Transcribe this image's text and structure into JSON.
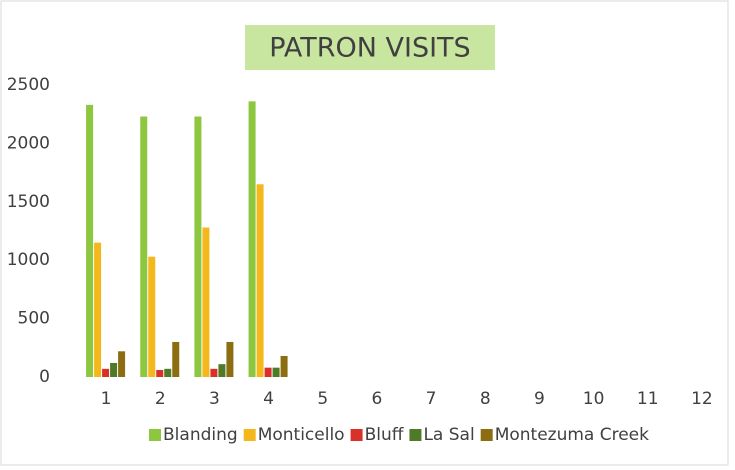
{
  "chart_data": {
    "type": "bar",
    "title": "PATRON VISITS",
    "categories": [
      "1",
      "2",
      "3",
      "4",
      "5",
      "6",
      "7",
      "8",
      "9",
      "10",
      "11",
      "12"
    ],
    "series": [
      {
        "name": "Blanding",
        "color": "#8dc63f",
        "values": [
          2330,
          2230,
          2230,
          2360,
          null,
          null,
          null,
          null,
          null,
          null,
          null,
          null
        ]
      },
      {
        "name": "Monticello",
        "color": "#f4b81c",
        "values": [
          1150,
          1030,
          1280,
          1650,
          null,
          null,
          null,
          null,
          null,
          null,
          null,
          null
        ]
      },
      {
        "name": "Bluff",
        "color": "#d9302a",
        "values": [
          70,
          60,
          70,
          80,
          null,
          null,
          null,
          null,
          null,
          null,
          null,
          null
        ]
      },
      {
        "name": "La Sal",
        "color": "#4f7a28",
        "values": [
          120,
          70,
          110,
          80,
          null,
          null,
          null,
          null,
          null,
          null,
          null,
          null
        ]
      },
      {
        "name": "Montezuma Creek",
        "color": "#8c6d12",
        "values": [
          220,
          300,
          300,
          180,
          null,
          null,
          null,
          null,
          null,
          null,
          null,
          null
        ]
      }
    ],
    "ylim": [
      0,
      2500
    ],
    "yticks": [
      0,
      500,
      1000,
      1500,
      2000,
      2500
    ],
    "grid": false,
    "legend": "bottom"
  }
}
